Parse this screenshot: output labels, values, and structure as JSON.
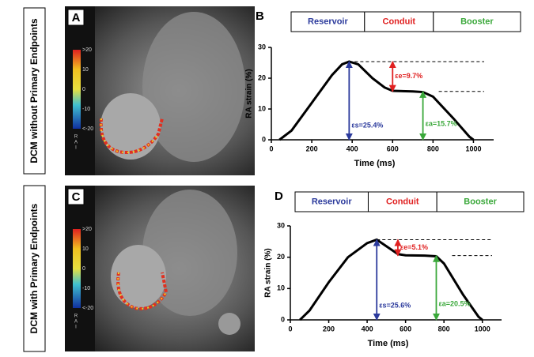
{
  "row_labels": [
    "DCM without Primary Endpoints",
    "DCM with Primary Endpoints"
  ],
  "image_panels": [
    {
      "letter": "A",
      "colorbar_labels": [
        ">20",
        "10",
        "0",
        "-10",
        "<-20"
      ],
      "orientation": [
        "R",
        "A",
        "I"
      ]
    },
    {
      "letter": "C",
      "colorbar_labels": [
        ">20",
        "10",
        "0",
        "-10",
        "<-20"
      ],
      "orientation": [
        "R",
        "A",
        "I"
      ]
    }
  ],
  "chart_data": [
    {
      "type": "line",
      "panel": "B",
      "phases": [
        {
          "name": "Reservoir",
          "color": "#2b3a9c"
        },
        {
          "name": "Conduit",
          "color": "#e02020"
        },
        {
          "name": "Booster",
          "color": "#3aa83a"
        }
      ],
      "xlabel": "Time (ms)",
      "ylabel": "RA strain (%)",
      "xlim": [
        0,
        1100
      ],
      "ylim": [
        0,
        30
      ],
      "xticks": [
        0,
        200,
        400,
        600,
        800,
        1000
      ],
      "yticks": [
        0,
        10,
        20,
        30
      ],
      "x": [
        40,
        100,
        200,
        300,
        350,
        385,
        430,
        500,
        560,
        600,
        700,
        750,
        800,
        900,
        980,
        1000
      ],
      "series": [
        {
          "color": "#000000",
          "values": [
            0,
            3,
            12,
            21,
            24.5,
            25.4,
            24.5,
            20,
            17,
            15.9,
            15.7,
            15.5,
            14,
            7,
            1,
            0
          ]
        }
      ],
      "annotations": [
        {
          "text": "εs=25.4%",
          "x": 385,
          "from": 0,
          "to": 25.4,
          "color": "#2b3a9c"
        },
        {
          "text": "εe=9.7%",
          "x": 600,
          "from": 25.4,
          "to": 15.7,
          "color": "#e02020"
        },
        {
          "text": "εa=15.7%",
          "x": 750,
          "from": 0,
          "to": 15.7,
          "color": "#3aa83a"
        }
      ]
    },
    {
      "type": "line",
      "panel": "D",
      "phases": [
        {
          "name": "Reservoir",
          "color": "#2b3a9c"
        },
        {
          "name": "Conduit",
          "color": "#e02020"
        },
        {
          "name": "Booster",
          "color": "#3aa83a"
        }
      ],
      "xlabel": "Time (ms)",
      "ylabel": "RA strain (%)",
      "xlim": [
        0,
        1100
      ],
      "ylim": [
        0,
        30
      ],
      "xticks": [
        0,
        200,
        400,
        600,
        800,
        1000
      ],
      "yticks": [
        0,
        10,
        20,
        30
      ],
      "x": [
        50,
        100,
        200,
        300,
        400,
        450,
        500,
        560,
        600,
        700,
        760,
        800,
        900,
        980,
        1000
      ],
      "series": [
        {
          "color": "#000000",
          "values": [
            0,
            3,
            12,
            20,
            24.5,
            25.6,
            23.5,
            21,
            20.6,
            20.5,
            20.3,
            18,
            8,
            1,
            0
          ]
        }
      ],
      "annotations": [
        {
          "text": "εs=25.6%",
          "x": 450,
          "from": 0,
          "to": 25.6,
          "color": "#2b3a9c"
        },
        {
          "text": "εe=5.1%",
          "x": 560,
          "from": 25.6,
          "to": 20.5,
          "color": "#e02020"
        },
        {
          "text": "εa=20.5%",
          "x": 760,
          "from": 0,
          "to": 20.5,
          "color": "#3aa83a"
        }
      ]
    }
  ]
}
